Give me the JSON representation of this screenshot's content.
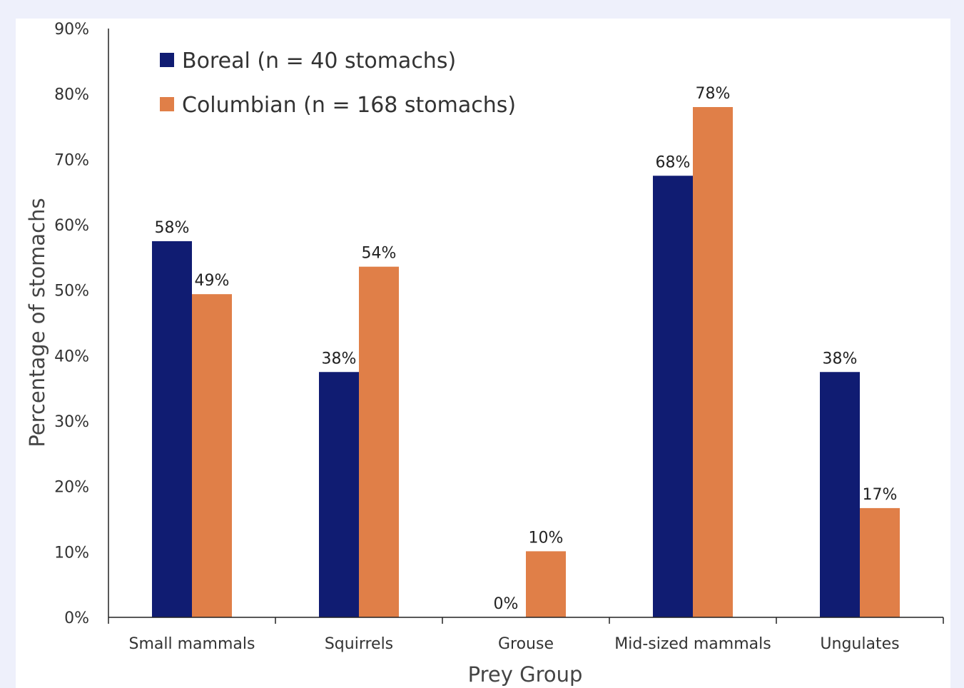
{
  "chart_data": {
    "type": "bar",
    "title": "",
    "xlabel": "Prey Group",
    "ylabel": "Percentage of stomachs",
    "ylim": [
      0,
      90
    ],
    "yticks": [
      0,
      10,
      20,
      30,
      40,
      50,
      60,
      70,
      80,
      90
    ],
    "ytick_labels": [
      "0%",
      "10%",
      "20%",
      "30%",
      "40%",
      "50%",
      "60%",
      "70%",
      "80%",
      "90%"
    ],
    "categories": [
      "Small mammals",
      "Squirrels",
      "Grouse",
      "Mid-sized mammals",
      "Ungulates"
    ],
    "series": [
      {
        "name": "Boreal (n = 40 stomachs)",
        "color": "#101c72",
        "values": [
          57.5,
          37.5,
          0,
          67.5,
          37.5
        ],
        "labels": [
          "58%",
          "38%",
          "0%",
          "68%",
          "38%"
        ]
      },
      {
        "name": "Columbian (n = 168 stomachs)",
        "color": "#e07f48",
        "values": [
          49.4,
          53.6,
          10.1,
          78.0,
          16.7
        ],
        "labels": [
          "49%",
          "54%",
          "10%",
          "78%",
          "17%"
        ]
      }
    ],
    "legend_position": "top-left",
    "grid": false
  }
}
